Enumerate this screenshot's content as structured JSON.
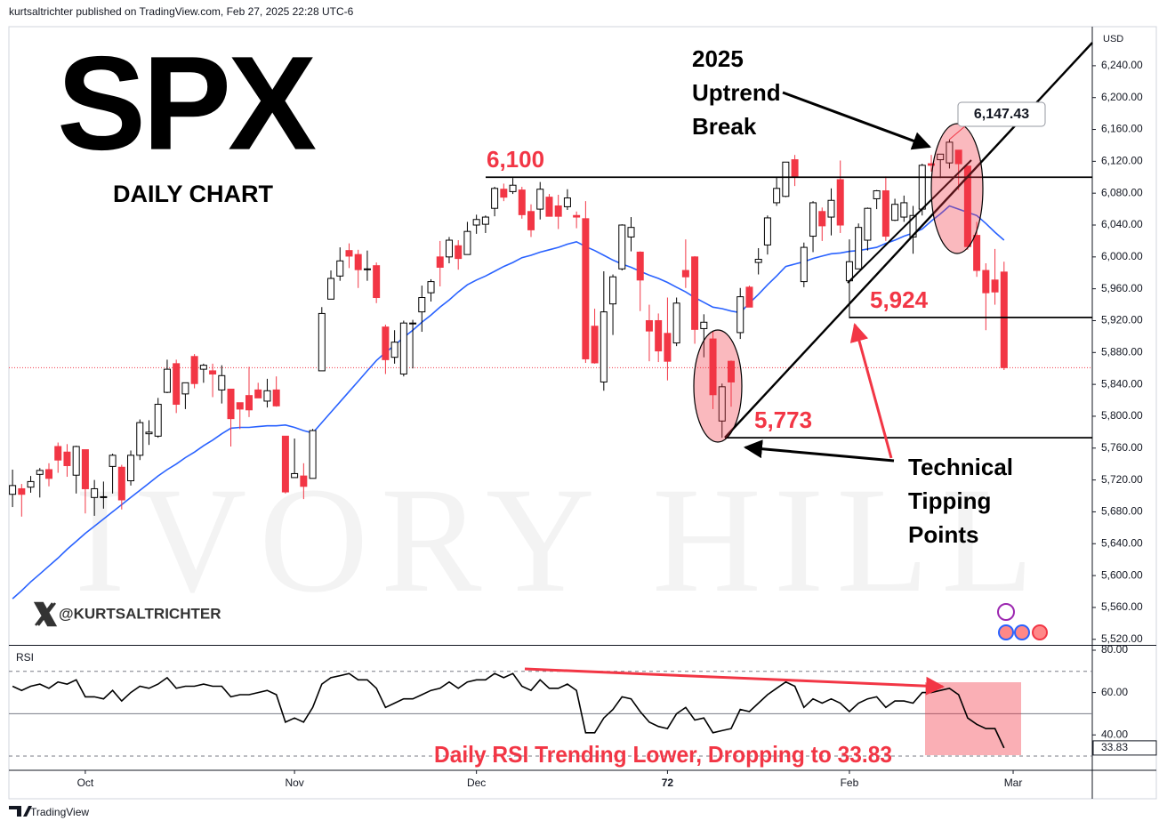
{
  "header": {
    "publisher": "kurtsaltrichter published on TradingView.com, Feb 27, 2025 22:28 UTC-6",
    "footer": "TradingView"
  },
  "chart_data": {
    "type": "candlestick",
    "title": "SPX",
    "subtitle": "DAILY CHART",
    "currency": "USD",
    "handle": "@KURTSALTRICHTER",
    "watermark": "IVORY HILL",
    "up_color": "#ffffff",
    "up_border": "#000000",
    "down_color": "#f23645",
    "open": [
      5702,
      5709,
      5711,
      5727,
      5733,
      5762,
      5755,
      5726,
      5758,
      5698,
      5699,
      5737,
      5736,
      5719,
      5751,
      5778,
      5775,
      5830,
      5866,
      5828,
      5875,
      5859,
      5857,
      5833,
      5834,
      5817,
      5826,
      5833,
      5819,
      5833,
      5775,
      5723,
      5725,
      5722,
      5857,
      5947,
      5976,
      6008,
      6003,
      5985,
      5989,
      5912,
      5874,
      5853,
      5917,
      5931,
      5955,
      6000,
      6000,
      6014,
      6003,
      6040,
      6041,
      6061,
      6085,
      6082,
      6084,
      6057,
      6060,
      6075,
      6064,
      6063,
      6052,
      6048,
      5913,
      5843,
      5941,
      5985,
      6025,
      6006,
      5920,
      5920,
      5904,
      5892,
      5983,
      6000,
      5910,
      5897,
      5794,
      5869,
      5905,
      5962,
      5993,
      6015,
      6068,
      6076,
      6122,
      5969,
      6026,
      6057,
      6050,
      6097,
      5970,
      5985,
      6021,
      6073,
      6083,
      6046,
      6050,
      6025,
      6060,
      6117,
      6122,
      6118,
      6134,
      6114,
      6027,
      5983,
      5971,
      5981
    ],
    "high": [
      5733,
      5715,
      5725,
      5735,
      5741,
      5767,
      5765,
      5763,
      5758,
      5720,
      5718,
      5753,
      5739,
      5757,
      5796,
      5795,
      5823,
      5871,
      5871,
      5842,
      5878,
      5866,
      5866,
      5864,
      5834,
      5817,
      5862,
      5842,
      5847,
      5850,
      5775,
      5772,
      5741,
      5784,
      5937,
      5983,
      6012,
      6017,
      6009,
      6008,
      5993,
      5915,
      5908,
      5920,
      5921,
      5964,
      5972,
      6020,
      6025,
      6021,
      6044,
      6053,
      6052,
      6088,
      6092,
      6099,
      6088,
      6066,
      6094,
      6079,
      6078,
      6085,
      6057,
      6070,
      5935,
      5982,
      5978,
      6041,
      6050,
      6007,
      5940,
      5929,
      5949,
      5949,
      6022,
      6001,
      5928,
      5907,
      5841,
      5870,
      5961,
      5964,
      6011,
      6052,
      6100,
      6119,
      6128,
      6018,
      6070,
      6062,
      6086,
      6121,
      6022,
      6042,
      6062,
      6084,
      6101,
      6073,
      6077,
      6064,
      6117,
      6128,
      6129,
      6147.43,
      6134,
      6114,
      6044,
      5992,
      6010,
      5994
    ],
    "low": [
      5686,
      5674,
      5704,
      5698,
      5712,
      5729,
      5724,
      5703,
      5678,
      5675,
      5684,
      5703,
      5683,
      5713,
      5745,
      5764,
      5773,
      5829,
      5804,
      5809,
      5835,
      5842,
      5824,
      5816,
      5762,
      5784,
      5799,
      5823,
      5811,
      5812,
      5703,
      5723,
      5696,
      5722,
      5857,
      5947,
      5970,
      5986,
      5961,
      5970,
      5942,
      5853,
      5866,
      5850,
      5860,
      5906,
      5944,
      5963,
      5992,
      5984,
      6003,
      6029,
      6030,
      6051,
      6070,
      6079,
      6048,
      6025,
      6047,
      6051,
      6035,
      6059,
      6036,
      5867,
      5866,
      5832,
      5902,
      5983,
      6007,
      5932,
      5869,
      5868,
      5845,
      5888,
      5961,
      5891,
      5874,
      5809,
      5773,
      5812,
      5897,
      5937,
      5978,
      6003,
      6064,
      6075,
      6089,
      5962,
      6006,
      6020,
      6027,
      6030,
      5923,
      5985,
      6008,
      6060,
      6020,
      6045,
      6044,
      6004,
      6052,
      6107,
      6099,
      6111,
      6084,
      6009,
      5975,
      5908,
      5940,
      5858
    ],
    "close": [
      5713,
      5702,
      5718,
      5732,
      5722,
      5745,
      5738,
      5762,
      5709,
      5709,
      5699,
      5751,
      5695,
      5751,
      5792,
      5780,
      5815,
      5859,
      5815,
      5842,
      5841,
      5864,
      5853,
      5851,
      5797,
      5809,
      5808,
      5823,
      5832,
      5813,
      5705,
      5728,
      5712,
      5782,
      5929,
      5973,
      5995,
      6001,
      5984,
      5985,
      5949,
      5871,
      5893,
      5917,
      5917,
      5949,
      5969,
      5987,
      6021,
      5998,
      6032,
      6047,
      6050,
      6086,
      6075,
      6090,
      6053,
      6034,
      6085,
      6051,
      6051,
      6074,
      6050,
      5872,
      5867,
      5931,
      5975,
      6040,
      6037,
      5971,
      5907,
      5882,
      5869,
      5942,
      5975,
      5909,
      5918,
      5827,
      5837,
      5843,
      5950,
      5937,
      5997,
      6049,
      6086,
      6119,
      6101,
      6012,
      6068,
      6039,
      6071,
      6040,
      5994,
      6037,
      6061,
      6083,
      6026,
      6066,
      6068,
      6052,
      6115,
      6115,
      6129,
      6144,
      6117,
      6013,
      5983,
      5955,
      5956,
      5861
    ],
    "ma": {
      "color": "#2962ff",
      "values": [
        5571,
        5581,
        5592,
        5602,
        5612,
        5622,
        5633,
        5643,
        5653,
        5662,
        5671,
        5680,
        5689,
        5698,
        5707,
        5716,
        5725,
        5733,
        5740,
        5748,
        5755,
        5763,
        5770,
        5778,
        5785,
        5786,
        5786,
        5787,
        5788,
        5788,
        5789,
        5786,
        5782,
        5779,
        5792,
        5805,
        5818,
        5831,
        5844,
        5857,
        5870,
        5880,
        5889,
        5899,
        5908,
        5918,
        5927,
        5937,
        5946,
        5956,
        5965,
        5971,
        5976,
        5982,
        5988,
        5993,
        5999,
        6002,
        6006,
        6009,
        6012,
        6016,
        6019,
        6013,
        6008,
        6002,
        5996,
        5991,
        5987,
        5982,
        5977,
        5973,
        5968,
        5962,
        5956,
        5949,
        5943,
        5937,
        5935,
        5932,
        5930,
        5942,
        5953,
        5965,
        5976,
        5988,
        5991,
        5994,
        5998,
        6001,
        6004,
        6005,
        6007,
        6008,
        6010,
        6012,
        6017,
        6021,
        6026,
        6030,
        6035,
        6045,
        6054,
        6064,
        6060,
        6056,
        6052,
        6042,
        6031,
        6021
      ]
    },
    "xlim": [
      -0.4,
      118.7
    ],
    "xticks": [
      {
        "value": 8,
        "label": "Oct"
      },
      {
        "value": 31,
        "label": "Nov"
      },
      {
        "value": 51,
        "label": "Dec"
      },
      72,
      {
        "value": 92,
        "label": "Feb"
      },
      {
        "value": 110,
        "label": "Mar"
      }
    ],
    "ylim": [
      5513,
      6289
    ],
    "yticks": [
      {
        "value": 5520,
        "label": "5,520.00"
      },
      {
        "value": 5560,
        "label": "5,560.00"
      },
      {
        "value": 5600,
        "label": "5,600.00"
      },
      {
        "value": 5640,
        "label": "5,640.00"
      },
      {
        "value": 5680,
        "label": "5,680.00"
      },
      {
        "value": 5720,
        "label": "5,720.00"
      },
      {
        "value": 5760,
        "label": "5,760.00"
      },
      {
        "value": 5800,
        "label": "5,800.00"
      },
      {
        "value": 5840,
        "label": "5,840.00"
      },
      {
        "value": 5880,
        "label": "5,880.00"
      },
      {
        "value": 5920,
        "label": "5,920.00"
      },
      {
        "value": 5960,
        "label": "5,960.00"
      },
      {
        "value": 6000,
        "label": "6,000.00"
      },
      {
        "value": 6040,
        "label": "6,040.00"
      },
      {
        "value": 6080,
        "label": "6,080.00"
      },
      {
        "value": 6120,
        "label": "6,120.00"
      },
      {
        "value": 6160,
        "label": "6,160.00"
      },
      {
        "value": 6200,
        "label": "6,200.00"
      },
      {
        "value": 6240,
        "label": "6,240.00"
      }
    ],
    "levels": [
      {
        "value": 6100,
        "label": "6,100"
      },
      {
        "value": 5924,
        "label": "5,924"
      },
      {
        "value": 5773,
        "label": "5,773"
      }
    ],
    "high_annotation": {
      "value": 6147.43,
      "label": "6,147.43"
    },
    "annotations": [
      {
        "lines": [
          "2025",
          "Uptrend",
          "Break"
        ]
      },
      {
        "lines": [
          "Technical",
          "Tipping",
          "Points"
        ]
      }
    ],
    "rsi": {
      "title": "RSI",
      "color": "#000000",
      "values": [
        63,
        61,
        63,
        64,
        62,
        65,
        64,
        66,
        58,
        58,
        57,
        61,
        56,
        60,
        63,
        62,
        64,
        67,
        62,
        63,
        63,
        64,
        63,
        63,
        58,
        59,
        59,
        60,
        61,
        59,
        46,
        48,
        46,
        53,
        64,
        67,
        68,
        69,
        66,
        66,
        62,
        53,
        55,
        57,
        57,
        59,
        61,
        62,
        65,
        62,
        65,
        66,
        66,
        69,
        67,
        69,
        63,
        61,
        66,
        62,
        62,
        64,
        61,
        41,
        41,
        48,
        52,
        58,
        57,
        51,
        46,
        44,
        43,
        50,
        53,
        47,
        48,
        41,
        42,
        43,
        52,
        51,
        55,
        59,
        62,
        65,
        63,
        53,
        57,
        55,
        57,
        55,
        51,
        55,
        57,
        58,
        53,
        56,
        56,
        55,
        60,
        60,
        61,
        62,
        59,
        48,
        45,
        43,
        43,
        33.83
      ],
      "ylim": [
        23.7,
        82.1
      ],
      "yticks": [
        {
          "value": 80,
          "label": "80.00"
        },
        {
          "value": 60,
          "label": "60.00"
        },
        {
          "value": 40,
          "label": "40.00"
        }
      ],
      "bands": [
        70,
        50,
        30
      ],
      "note": "Daily RSI Trending Lower, Dropping to 33.83"
    }
  }
}
